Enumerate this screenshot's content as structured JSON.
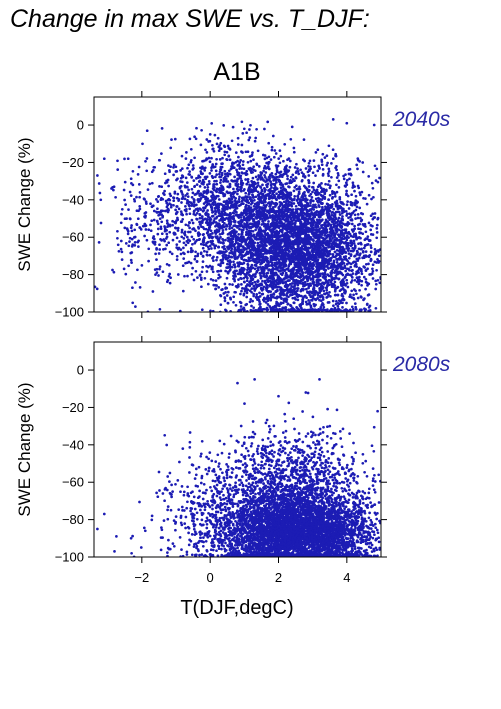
{
  "figure": {
    "title": "Change in max SWE vs. T_DJF:",
    "subtitle": "A1B"
  },
  "colors": {
    "points": "#1c1cb4",
    "period_label": "#2a2aa6"
  },
  "chart_data": [
    {
      "type": "scatter",
      "panel_label": "2040s",
      "ylabel": "SWE Change (%)",
      "xlabel": "",
      "xlim": [
        -3.4,
        5.0
      ],
      "ylim": [
        -100,
        15
      ],
      "yticks": [
        0,
        -20,
        -40,
        -60,
        -80,
        -100
      ],
      "xticks": [
        -2,
        0,
        2,
        4
      ],
      "show_x_tick_labels": false,
      "grid": false,
      "n_points_approx": 6000,
      "sample_points": [
        [
          -3.3,
          -27
        ],
        [
          -3.1,
          -18
        ],
        [
          -3.2,
          -40
        ],
        [
          -2.4,
          -18
        ],
        [
          -2.6,
          -62
        ],
        [
          -2.5,
          -55
        ],
        [
          -2.1,
          -65
        ],
        [
          -1.8,
          -56
        ],
        [
          -1.6,
          -80
        ],
        [
          -1.2,
          -75
        ],
        [
          0.0,
          -5
        ],
        [
          1.0,
          -2
        ],
        [
          2.4,
          -1
        ],
        [
          3.6,
          3
        ],
        [
          4.0,
          1
        ],
        [
          4.8,
          0
        ]
      ],
      "clusters": [
        {
          "x_mean": 2.6,
          "y_mean": -65,
          "x_sd": 1.1,
          "y_sd": 20,
          "weight": 0.72
        },
        {
          "x_mean": 0.6,
          "y_mean": -45,
          "x_sd": 0.9,
          "y_sd": 18,
          "weight": 0.22
        },
        {
          "x_mean": -1.5,
          "y_mean": -50,
          "x_sd": 0.9,
          "y_sd": 18,
          "weight": 0.06
        }
      ]
    },
    {
      "type": "scatter",
      "panel_label": "2080s",
      "ylabel": "SWE Change (%)",
      "xlabel": "T(DJF,degC)",
      "xlim": [
        -3.4,
        5.0
      ],
      "ylim": [
        -100,
        15
      ],
      "yticks": [
        0,
        -20,
        -40,
        -60,
        -80,
        -100
      ],
      "xticks": [
        -2,
        0,
        2,
        4
      ],
      "xtick_labels": [
        "−2",
        "0",
        "2",
        "4"
      ],
      "show_x_tick_labels": true,
      "grid": false,
      "n_points_approx": 6000,
      "sample_points": [
        [
          -3.3,
          -85
        ],
        [
          -3.1,
          -77
        ],
        [
          -2.8,
          -97
        ],
        [
          -2.3,
          -98
        ],
        [
          -1.9,
          -86
        ],
        [
          -1.7,
          -78
        ],
        [
          -1.1,
          -65
        ],
        [
          -0.8,
          -42
        ],
        [
          0.8,
          -7
        ],
        [
          1.3,
          -5
        ],
        [
          2.0,
          -14
        ],
        [
          2.8,
          -12
        ],
        [
          3.2,
          -5
        ],
        [
          4.9,
          -22
        ],
        [
          3.5,
          -30
        ]
      ],
      "clusters": [
        {
          "x_mean": 2.6,
          "y_mean": -87,
          "x_sd": 1.1,
          "y_sd": 10,
          "weight": 0.7
        },
        {
          "x_mean": 2.5,
          "y_mean": -62,
          "x_sd": 1.0,
          "y_sd": 15,
          "weight": 0.2
        },
        {
          "x_mean": 0.5,
          "y_mean": -75,
          "x_sd": 1.0,
          "y_sd": 15,
          "weight": 0.1
        }
      ]
    }
  ]
}
